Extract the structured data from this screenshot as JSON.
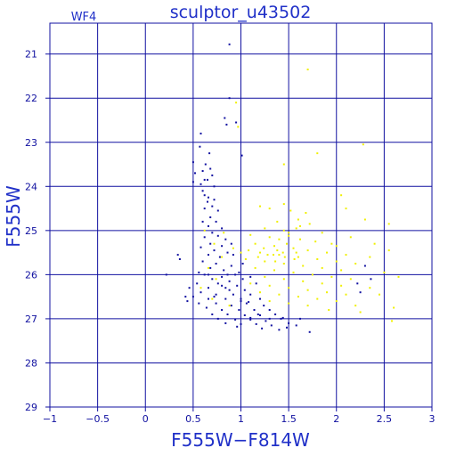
{
  "colors": {
    "axis": "#1010a0",
    "grid": "#1010a0",
    "text": "#2030c8",
    "blue_points": "#1010a0",
    "yellow_points": "#f0f000"
  },
  "chart_data": {
    "type": "scatter",
    "title": "sculptor_u43502",
    "corner_label": "WF4",
    "xlabel": "F555W−F814W",
    "ylabel": "F555W",
    "xlim": [
      -1,
      3
    ],
    "ylim": [
      29,
      20.3
    ],
    "y_inverted": true,
    "grid": true,
    "x_ticks": [
      {
        "value": -1,
        "label": "−1"
      },
      {
        "value": -0.5,
        "label": "−0.5"
      },
      {
        "value": 0,
        "label": "0"
      },
      {
        "value": 0.5,
        "label": "0.5"
      },
      {
        "value": 1,
        "label": "1"
      },
      {
        "value": 1.5,
        "label": "1.5"
      },
      {
        "value": 2,
        "label": "2"
      },
      {
        "value": 2.5,
        "label": "2.5"
      },
      {
        "value": 3,
        "label": "3"
      }
    ],
    "y_ticks": [
      {
        "value": 21,
        "label": "21"
      },
      {
        "value": 22,
        "label": "22"
      },
      {
        "value": 23,
        "label": "23"
      },
      {
        "value": 24,
        "label": "24"
      },
      {
        "value": 25,
        "label": "25"
      },
      {
        "value": 26,
        "label": "26"
      },
      {
        "value": 27,
        "label": "27"
      },
      {
        "value": 28,
        "label": "28"
      },
      {
        "value": 29,
        "label": "29"
      }
    ],
    "series": [
      {
        "color_key": "blue_points",
        "points": [
          [
            0.88,
            20.78
          ],
          [
            0.83,
            22.45
          ],
          [
            0.88,
            22.0
          ],
          [
            0.85,
            22.6
          ],
          [
            0.95,
            22.55
          ],
          [
            0.58,
            22.8
          ],
          [
            0.67,
            23.25
          ],
          [
            0.57,
            23.1
          ],
          [
            1.01,
            23.3
          ],
          [
            0.5,
            23.45
          ],
          [
            0.52,
            23.7
          ],
          [
            0.63,
            23.5
          ],
          [
            0.68,
            23.6
          ],
          [
            0.6,
            23.65
          ],
          [
            0.7,
            23.75
          ],
          [
            0.62,
            23.85
          ],
          [
            0.5,
            23.9
          ],
          [
            0.58,
            23.95
          ],
          [
            0.65,
            23.85
          ],
          [
            0.72,
            24.0
          ],
          [
            0.6,
            24.1
          ],
          [
            0.62,
            24.2
          ],
          [
            0.66,
            24.25
          ],
          [
            0.72,
            24.3
          ],
          [
            0.65,
            24.35
          ],
          [
            0.62,
            24.5
          ],
          [
            0.7,
            24.45
          ],
          [
            0.76,
            24.55
          ],
          [
            0.68,
            24.7
          ],
          [
            0.6,
            24.8
          ],
          [
            0.74,
            24.8
          ],
          [
            0.66,
            24.9
          ],
          [
            0.8,
            24.95
          ],
          [
            0.7,
            25.05
          ],
          [
            0.62,
            25.15
          ],
          [
            0.76,
            25.12
          ],
          [
            0.84,
            25.2
          ],
          [
            0.68,
            25.3
          ],
          [
            0.58,
            25.38
          ],
          [
            0.8,
            25.35
          ],
          [
            0.9,
            25.3
          ],
          [
            0.72,
            25.45
          ],
          [
            0.86,
            25.5
          ],
          [
            0.66,
            25.55
          ],
          [
            0.78,
            25.6
          ],
          [
            0.92,
            25.55
          ],
          [
            0.34,
            25.55
          ],
          [
            0.36,
            25.65
          ],
          [
            0.6,
            25.7
          ],
          [
            0.74,
            25.75
          ],
          [
            0.9,
            25.8
          ],
          [
            1.02,
            25.75
          ],
          [
            0.68,
            25.85
          ],
          [
            0.82,
            25.9
          ],
          [
            0.56,
            25.95
          ],
          [
            0.98,
            25.95
          ],
          [
            0.66,
            26.0
          ],
          [
            0.8,
            26.05
          ],
          [
            0.94,
            26.0
          ],
          [
            1.1,
            26.05
          ],
          [
            0.7,
            26.1
          ],
          [
            0.88,
            26.15
          ],
          [
            1.02,
            26.1
          ],
          [
            0.54,
            26.2
          ],
          [
            0.76,
            26.2
          ],
          [
            0.96,
            26.25
          ],
          [
            1.16,
            26.2
          ],
          [
            0.46,
            26.3
          ],
          [
            0.66,
            26.3
          ],
          [
            0.84,
            26.3
          ],
          [
            1.04,
            26.35
          ],
          [
            0.58,
            26.4
          ],
          [
            0.74,
            26.45
          ],
          [
            0.92,
            26.45
          ],
          [
            1.1,
            26.45
          ],
          [
            0.5,
            26.5
          ],
          [
            0.66,
            26.55
          ],
          [
            0.84,
            26.55
          ],
          [
            1.0,
            26.55
          ],
          [
            1.2,
            26.55
          ],
          [
            0.56,
            26.65
          ],
          [
            0.74,
            26.65
          ],
          [
            0.9,
            26.7
          ],
          [
            1.06,
            26.65
          ],
          [
            1.24,
            26.7
          ],
          [
            0.44,
            26.6
          ],
          [
            0.64,
            26.75
          ],
          [
            0.8,
            26.8
          ],
          [
            0.98,
            26.8
          ],
          [
            1.14,
            26.8
          ],
          [
            1.3,
            26.8
          ],
          [
            0.7,
            26.9
          ],
          [
            0.86,
            26.9
          ],
          [
            1.04,
            26.92
          ],
          [
            1.2,
            26.92
          ],
          [
            1.36,
            26.9
          ],
          [
            0.76,
            27.0
          ],
          [
            0.94,
            27.02
          ],
          [
            1.1,
            27.02
          ],
          [
            1.26,
            27.05
          ],
          [
            1.42,
            27.0
          ],
          [
            0.84,
            27.1
          ],
          [
            1.0,
            27.12
          ],
          [
            1.16,
            27.12
          ],
          [
            1.32,
            27.15
          ],
          [
            1.5,
            27.1
          ],
          [
            1.62,
            27.0
          ],
          [
            1.48,
            27.2
          ],
          [
            1.22,
            27.22
          ],
          [
            1.4,
            27.25
          ],
          [
            1.58,
            27.15
          ],
          [
            1.72,
            27.3
          ],
          [
            0.22,
            26.0
          ],
          [
            0.42,
            26.5
          ],
          [
            1.1,
            26.98
          ],
          [
            1.3,
            27.0
          ],
          [
            1.44,
            26.98
          ],
          [
            0.96,
            27.18
          ],
          [
            0.72,
            26.5
          ],
          [
            0.88,
            26.35
          ],
          [
            1.08,
            26.62
          ],
          [
            1.18,
            26.9
          ],
          [
            2.3,
            25.8
          ],
          [
            2.22,
            26.2
          ],
          [
            2.36,
            26.1
          ],
          [
            2.25,
            26.4
          ],
          [
            0.86,
            26.0
          ],
          [
            1.0,
            26.6
          ],
          [
            0.8,
            26.25
          ],
          [
            0.62,
            26.0
          ]
        ]
      },
      {
        "color_key": "yellow_points",
        "points": [
          [
            1.7,
            21.35
          ],
          [
            0.95,
            22.1
          ],
          [
            0.97,
            22.65
          ],
          [
            1.45,
            23.5
          ],
          [
            1.8,
            23.25
          ],
          [
            2.28,
            23.05
          ],
          [
            1.2,
            24.45
          ],
          [
            1.3,
            24.5
          ],
          [
            1.45,
            24.4
          ],
          [
            1.52,
            24.55
          ],
          [
            1.68,
            24.6
          ],
          [
            2.05,
            24.2
          ],
          [
            2.1,
            24.5
          ],
          [
            1.38,
            24.8
          ],
          [
            1.6,
            24.75
          ],
          [
            1.25,
            24.95
          ],
          [
            1.45,
            25.0
          ],
          [
            1.58,
            24.95
          ],
          [
            1.72,
            24.85
          ],
          [
            1.85,
            25.05
          ],
          [
            2.55,
            24.85
          ],
          [
            1.1,
            25.1
          ],
          [
            1.3,
            25.15
          ],
          [
            1.5,
            25.12
          ],
          [
            1.62,
            25.2
          ],
          [
            1.78,
            25.25
          ],
          [
            1.95,
            25.3
          ],
          [
            2.15,
            25.15
          ],
          [
            2.4,
            25.3
          ],
          [
            1.15,
            25.3
          ],
          [
            1.35,
            25.35
          ],
          [
            1.55,
            25.4
          ],
          [
            1.7,
            25.45
          ],
          [
            1.9,
            25.5
          ],
          [
            2.1,
            25.55
          ],
          [
            2.35,
            25.6
          ],
          [
            2.55,
            25.45
          ],
          [
            1.2,
            25.5
          ],
          [
            1.4,
            25.55
          ],
          [
            1.6,
            25.6
          ],
          [
            1.8,
            25.65
          ],
          [
            2.0,
            25.7
          ],
          [
            2.2,
            25.75
          ],
          [
            1.05,
            25.65
          ],
          [
            1.25,
            25.7
          ],
          [
            1.45,
            25.75
          ],
          [
            1.65,
            25.8
          ],
          [
            1.85,
            25.85
          ],
          [
            2.05,
            25.9
          ],
          [
            2.5,
            25.95
          ],
          [
            1.15,
            25.85
          ],
          [
            1.35,
            25.9
          ],
          [
            1.55,
            25.95
          ],
          [
            1.75,
            26.0
          ],
          [
            1.95,
            26.05
          ],
          [
            2.15,
            26.1
          ],
          [
            2.65,
            26.05
          ],
          [
            1.25,
            26.05
          ],
          [
            1.45,
            26.1
          ],
          [
            1.65,
            26.15
          ],
          [
            1.85,
            26.2
          ],
          [
            2.05,
            26.25
          ],
          [
            2.35,
            26.3
          ],
          [
            1.1,
            26.2
          ],
          [
            1.3,
            26.25
          ],
          [
            1.5,
            26.3
          ],
          [
            1.7,
            26.35
          ],
          [
            1.9,
            26.4
          ],
          [
            2.1,
            26.45
          ],
          [
            2.45,
            26.45
          ],
          [
            1.2,
            26.4
          ],
          [
            1.4,
            26.45
          ],
          [
            1.6,
            26.5
          ],
          [
            1.8,
            26.55
          ],
          [
            2.0,
            26.6
          ],
          [
            2.2,
            26.7
          ],
          [
            2.6,
            26.75
          ],
          [
            1.3,
            26.6
          ],
          [
            1.5,
            26.65
          ],
          [
            1.7,
            26.7
          ],
          [
            1.92,
            26.8
          ],
          [
            2.25,
            26.85
          ],
          [
            2.58,
            27.05
          ],
          [
            0.62,
            25.0
          ],
          [
            0.72,
            25.3
          ],
          [
            0.8,
            25.6
          ],
          [
            0.66,
            25.85
          ],
          [
            0.74,
            26.1
          ],
          [
            0.58,
            26.3
          ],
          [
            0.7,
            26.55
          ],
          [
            0.88,
            26.7
          ],
          [
            0.82,
            25.05
          ],
          [
            0.92,
            25.4
          ],
          [
            1.0,
            25.5
          ],
          [
            1.08,
            25.45
          ],
          [
            1.18,
            25.6
          ],
          [
            1.28,
            25.55
          ],
          [
            1.38,
            25.45
          ],
          [
            1.48,
            25.3
          ],
          [
            1.58,
            25.5
          ],
          [
            1.36,
            25.7
          ],
          [
            1.46,
            25.6
          ],
          [
            1.56,
            25.65
          ],
          [
            1.34,
            25.55
          ],
          [
            1.44,
            25.5
          ],
          [
            1.24,
            25.4
          ],
          [
            1.4,
            25.2
          ],
          [
            1.5,
            25.05
          ],
          [
            1.62,
            24.9
          ],
          [
            2.0,
            25.35
          ],
          [
            2.3,
            24.75
          ]
        ]
      }
    ]
  }
}
